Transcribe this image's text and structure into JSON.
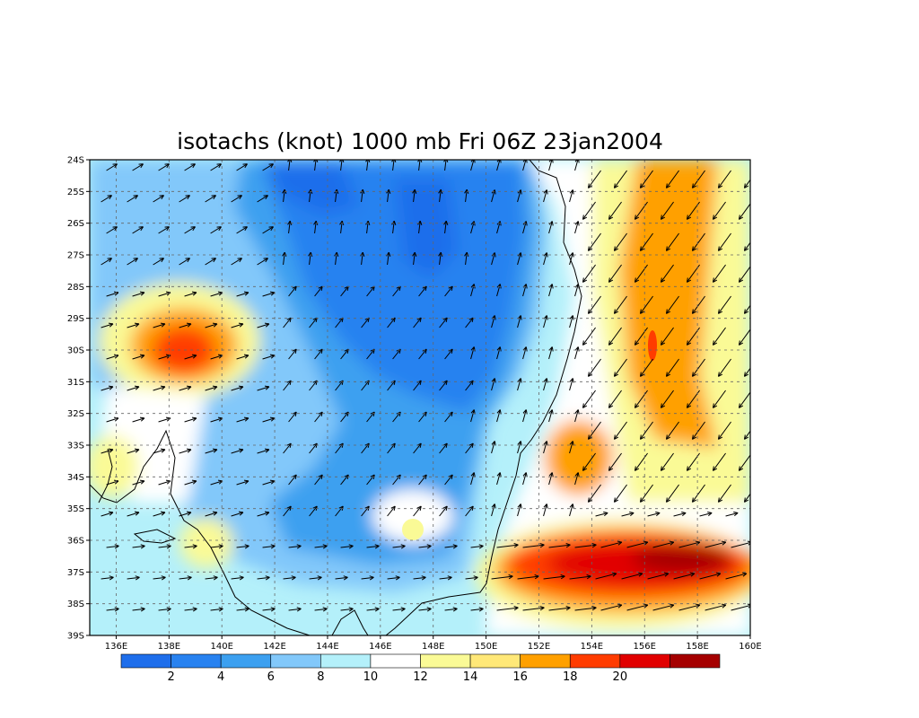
{
  "title": "isotachs (knot) 1000 mb Fri 06Z 23jan2004",
  "map": {
    "lon_range": [
      135,
      160
    ],
    "lat_range": [
      -39,
      -24
    ],
    "lon_ticks": [
      "136E",
      "138E",
      "140E",
      "142E",
      "144E",
      "146E",
      "148E",
      "150E",
      "152E",
      "154E",
      "156E",
      "158E",
      "160E"
    ],
    "lon_tick_values": [
      136,
      138,
      140,
      142,
      144,
      146,
      148,
      150,
      152,
      154,
      156,
      158,
      160
    ],
    "lat_ticks": [
      "24S",
      "25S",
      "26S",
      "27S",
      "28S",
      "29S",
      "30S",
      "31S",
      "32S",
      "33S",
      "34S",
      "35S",
      "36S",
      "37S",
      "38S",
      "39S"
    ],
    "lat_tick_values": [
      -24,
      -25,
      -26,
      -27,
      -28,
      -29,
      -30,
      -31,
      -32,
      -33,
      -34,
      -35,
      -36,
      -37,
      -38,
      -39
    ],
    "grid": "dashed"
  },
  "colorbar": {
    "colors": [
      "#1e6eeb",
      "#2882f0",
      "#3ca0f0",
      "#82c8fa",
      "#b4f0fa",
      "#ffffff",
      "#fafa96",
      "#ffe878",
      "#ffa000",
      "#ff3c00",
      "#e10000",
      "#a50000"
    ],
    "labels": [
      "2",
      "4",
      "6",
      "8",
      "10",
      "12",
      "14",
      "16",
      "18",
      "20"
    ]
  },
  "chart_data": {
    "type": "heatmap",
    "title": "isotachs (knot) 1000 mb Fri 06Z 23jan2004",
    "variable": "wind speed (knot)",
    "levels": [
      0,
      2,
      4,
      6,
      8,
      10,
      12,
      14,
      16,
      18,
      20,
      22
    ],
    "features": [
      {
        "name": "strong-jet-southeast",
        "lon": 156.5,
        "lat": -37.0,
        "max_knot": 21
      },
      {
        "name": "eastern-band",
        "lon": 156.0,
        "lat": -29.0,
        "max_knot": 17
      },
      {
        "name": "western-max",
        "lon": 138.5,
        "lat": -30.2,
        "max_knot": 18
      },
      {
        "name": "central-minimum",
        "lon": 146.5,
        "lat": -28.5,
        "min_knot": 2
      }
    ]
  }
}
